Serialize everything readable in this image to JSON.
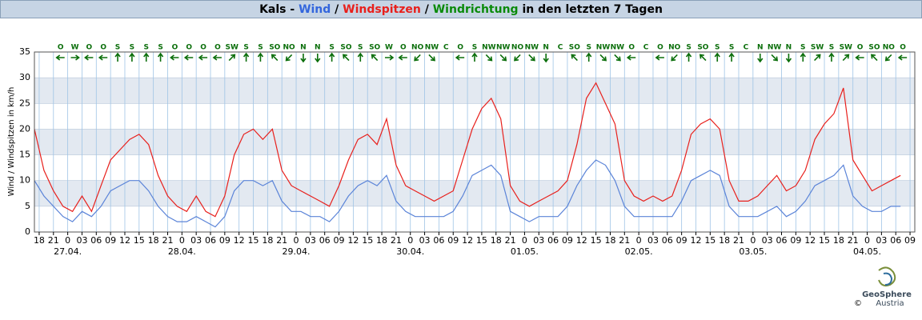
{
  "chart_data": {
    "type": "line",
    "title_prefix": "Kals -",
    "title_separator": "/",
    "title_suffix": "in den letzten 7 Tagen",
    "y_label": "Wind / Windspitzen in km/h",
    "xlim": [
      -7,
      178
    ],
    "ylim": [
      0,
      35
    ],
    "yticks": [
      0,
      5,
      10,
      15,
      20,
      25,
      30,
      35
    ],
    "xticks": [
      {
        "value": -6,
        "label": "18"
      },
      {
        "value": -3,
        "label": "21"
      },
      0,
      {
        "value": 3,
        "label": "03"
      },
      {
        "value": 6,
        "label": "06"
      },
      {
        "value": 9,
        "label": "09"
      },
      12,
      15,
      18,
      21,
      {
        "value": 24,
        "label": "0"
      },
      {
        "value": 27,
        "label": "03"
      },
      {
        "value": 30,
        "label": "06"
      },
      {
        "value": 33,
        "label": "09"
      },
      {
        "value": 36,
        "label": "12"
      },
      {
        "value": 39,
        "label": "15"
      },
      {
        "value": 42,
        "label": "18"
      },
      {
        "value": 45,
        "label": "21"
      },
      {
        "value": 48,
        "label": "0"
      },
      {
        "value": 51,
        "label": "03"
      },
      {
        "value": 54,
        "label": "06"
      },
      {
        "value": 57,
        "label": "09"
      },
      {
        "value": 60,
        "label": "12"
      },
      {
        "value": 63,
        "label": "15"
      },
      {
        "value": 66,
        "label": "18"
      },
      {
        "value": 69,
        "label": "21"
      },
      {
        "value": 72,
        "label": "0"
      },
      {
        "value": 75,
        "label": "03"
      },
      {
        "value": 78,
        "label": "06"
      },
      {
        "value": 81,
        "label": "09"
      },
      {
        "value": 84,
        "label": "12"
      },
      {
        "value": 87,
        "label": "15"
      },
      {
        "value": 90,
        "label": "18"
      },
      {
        "value": 93,
        "label": "21"
      },
      {
        "value": 96,
        "label": "0"
      },
      {
        "value": 99,
        "label": "03"
      },
      {
        "value": 102,
        "label": "06"
      },
      {
        "value": 105,
        "label": "09"
      },
      {
        "value": 108,
        "label": "12"
      },
      {
        "value": 111,
        "label": "15"
      },
      {
        "value": 114,
        "label": "18"
      },
      {
        "value": 117,
        "label": "21"
      },
      {
        "value": 120,
        "label": "0"
      },
      {
        "value": 123,
        "label": "03"
      },
      {
        "value": 126,
        "label": "06"
      },
      {
        "value": 129,
        "label": "09"
      },
      {
        "value": 132,
        "label": "12"
      },
      {
        "value": 135,
        "label": "15"
      },
      {
        "value": 138,
        "label": "18"
      },
      {
        "value": 141,
        "label": "21"
      },
      {
        "value": 144,
        "label": "0"
      },
      {
        "value": 147,
        "label": "03"
      },
      {
        "value": 150,
        "label": "06"
      },
      {
        "value": 153,
        "label": "09"
      },
      {
        "value": 156,
        "label": "12"
      },
      {
        "value": 159,
        "label": "15"
      },
      {
        "value": 162,
        "label": "18"
      },
      {
        "value": 165,
        "label": "21"
      },
      {
        "value": 168,
        "label": "0"
      },
      {
        "value": 171,
        "label": "03"
      },
      {
        "value": 174,
        "label": "06"
      },
      {
        "value": 177,
        "label": "09"
      }
    ],
    "date_labels": [
      {
        "value": 0,
        "label": "27.04."
      },
      {
        "value": 24,
        "label": "28.04."
      },
      {
        "value": 48,
        "label": "29.04."
      },
      {
        "value": 72,
        "label": "30.04."
      },
      {
        "value": 96,
        "label": "01.05."
      },
      {
        "value": 120,
        "label": "02.05."
      },
      {
        "value": 144,
        "label": "03.05."
      },
      {
        "value": 168,
        "label": "04.05."
      }
    ],
    "bands": true,
    "grid": true,
    "x": [
      -7,
      -5,
      -3,
      -1,
      1,
      3,
      5,
      7,
      9,
      11,
      13,
      15,
      17,
      19,
      21,
      23,
      25,
      27,
      29,
      31,
      33,
      35,
      37,
      39,
      41,
      43,
      45,
      47,
      49,
      51,
      53,
      55,
      57,
      59,
      61,
      63,
      65,
      67,
      69,
      71,
      73,
      75,
      77,
      79,
      81,
      83,
      85,
      87,
      89,
      91,
      93,
      95,
      97,
      99,
      101,
      103,
      105,
      107,
      109,
      111,
      113,
      115,
      117,
      119,
      121,
      123,
      125,
      127,
      129,
      131,
      133,
      135,
      137,
      139,
      141,
      143,
      145,
      147,
      149,
      151,
      153,
      155,
      157,
      159,
      161,
      163,
      165,
      167,
      169,
      171,
      173,
      175
    ],
    "series": [
      {
        "name": "Wind",
        "color": "#5b84d8",
        "values": [
          10,
          7,
          5,
          3,
          2,
          4,
          3,
          5,
          8,
          9,
          10,
          10,
          8,
          5,
          3,
          2,
          2,
          3,
          2,
          1,
          3,
          8,
          10,
          10,
          9,
          10,
          6,
          4,
          4,
          3,
          3,
          2,
          4,
          7,
          9,
          10,
          9,
          11,
          6,
          4,
          3,
          3,
          3,
          3,
          4,
          7,
          11,
          12,
          13,
          11,
          4,
          3,
          2,
          3,
          3,
          3,
          5,
          9,
          12,
          14,
          13,
          10,
          5,
          3,
          3,
          3,
          3,
          3,
          6,
          10,
          11,
          12,
          11,
          5,
          3,
          3,
          3,
          4,
          5,
          3,
          4,
          6,
          9,
          10,
          11,
          13,
          7,
          5,
          4,
          4,
          5,
          5
        ]
      },
      {
        "name": "Windspitzen",
        "color": "#e8201c",
        "values": [
          20,
          12,
          8,
          5,
          4,
          7,
          4,
          9,
          14,
          16,
          18,
          19,
          17,
          11,
          7,
          5,
          4,
          7,
          4,
          3,
          7,
          15,
          19,
          20,
          18,
          20,
          12,
          9,
          8,
          7,
          6,
          5,
          9,
          14,
          18,
          19,
          17,
          22,
          13,
          9,
          8,
          7,
          6,
          7,
          8,
          14,
          20,
          24,
          26,
          22,
          9,
          6,
          5,
          6,
          7,
          8,
          10,
          17,
          26,
          29,
          25,
          21,
          10,
          7,
          6,
          7,
          6,
          7,
          12,
          19,
          21,
          22,
          20,
          10,
          6,
          6,
          7,
          9,
          11,
          8,
          9,
          12,
          18,
          21,
          23,
          28,
          14,
          11,
          8,
          9,
          10,
          11
        ]
      }
    ],
    "wind_direction": {
      "name": "Windrichtung",
      "color": "#0a6e0a",
      "x": [
        -1.5,
        1.5,
        4.5,
        7.5,
        10.5,
        13.5,
        16.5,
        19.5,
        22.5,
        25.5,
        28.5,
        31.5,
        34.5,
        37.5,
        40.5,
        43.5,
        46.5,
        49.5,
        52.5,
        55.5,
        58.5,
        61.5,
        64.5,
        67.5,
        70.5,
        73.5,
        76.5,
        79.5,
        82.5,
        85.5,
        88.5,
        91.5,
        94.5,
        97.5,
        100.5,
        103.5,
        106.5,
        109.5,
        112.5,
        115.5,
        118.5,
        121.5,
        124.5,
        127.5,
        130.5,
        133.5,
        136.5,
        139.5,
        142.5,
        145.5,
        148.5,
        151.5,
        154.5,
        157.5,
        160.5,
        163.5,
        166.5,
        169.5,
        172.5,
        175.5
      ],
      "labels": [
        "O",
        "W",
        "O",
        "O",
        "S",
        "S",
        "S",
        "S",
        "O",
        "O",
        "O",
        "O",
        "SW",
        "S",
        "S",
        "SO",
        "NO",
        "N",
        "N",
        "S",
        "SO",
        "S",
        "SO",
        "W",
        "O",
        "NO",
        "NW",
        "C",
        "O",
        "S",
        "NW",
        "NW",
        "NO",
        "NW",
        "N",
        "C",
        "SO",
        "S",
        "NW",
        "NW",
        "O",
        "C",
        "O",
        "NO",
        "S",
        "SO",
        "S",
        "S",
        "C",
        "N",
        "NW",
        "N",
        "S",
        "SW",
        "S",
        "SW",
        "O",
        "SO",
        "NO",
        "O"
      ]
    },
    "logo_name": "GeoSphere",
    "logo_copyright": "©",
    "logo_country": "Austria"
  }
}
